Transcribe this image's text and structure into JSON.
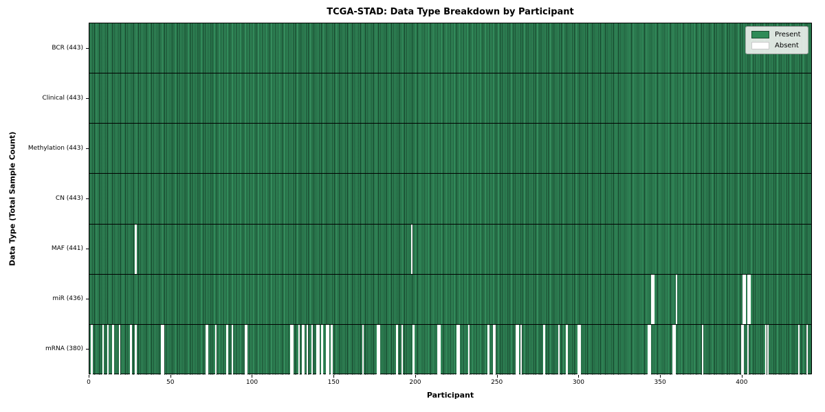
{
  "title": "TCGA-STAD: Data Type Breakdown by Participant",
  "chart_data": {
    "type": "heatmap",
    "title": "TCGA-STAD: Data Type Breakdown by Participant",
    "xlabel": "Participant",
    "ylabel": "Data Type (Total Sample Count)",
    "x_range": [
      0,
      443
    ],
    "x_ticks": [
      0,
      50,
      100,
      150,
      200,
      250,
      300,
      350,
      400
    ],
    "n_participants": 443,
    "grid": false,
    "legend_position": "upper right",
    "legend": [
      {
        "label": "Present",
        "color": "#2e8b57"
      },
      {
        "label": "Absent",
        "color": "#ffffff"
      }
    ],
    "colors": {
      "present": "#2e8b57",
      "present_edge": "#1b4d31",
      "absent": "#ffffff",
      "row_divider": "#000000"
    },
    "rows": [
      {
        "name": "BCR",
        "label": "BCR (443)",
        "present_count": 443,
        "absent_participants": []
      },
      {
        "name": "Clinical",
        "label": "Clinical (443)",
        "present_count": 443,
        "absent_participants": []
      },
      {
        "name": "Methylation",
        "label": "Methylation (443)",
        "present_count": 443,
        "absent_participants": []
      },
      {
        "name": "CN",
        "label": "CN (443)",
        "present_count": 443,
        "absent_participants": []
      },
      {
        "name": "MAF",
        "label": "MAF (441)",
        "present_count": 441,
        "absent_participants": [
          28,
          197
        ]
      },
      {
        "name": "miR",
        "label": "miR (436)",
        "present_count": 436,
        "absent_participants": [
          344,
          345,
          359,
          400,
          401,
          403,
          404
        ]
      },
      {
        "name": "mRNA",
        "label": "mRNA (380)",
        "present_count": 380,
        "absent_participants": [
          1,
          8,
          11,
          14,
          18,
          25,
          28,
          44,
          45,
          71,
          72,
          77,
          84,
          87,
          95,
          96,
          123,
          124,
          128,
          130,
          131,
          133,
          136,
          139,
          140,
          142,
          145,
          146,
          148,
          167,
          176,
          177,
          188,
          191,
          198,
          213,
          214,
          225,
          226,
          232,
          244,
          247,
          248,
          261,
          262,
          264,
          278,
          287,
          292,
          299,
          300,
          342,
          343,
          357,
          358,
          375,
          399,
          400,
          403,
          414,
          415,
          434,
          439
        ]
      }
    ]
  }
}
